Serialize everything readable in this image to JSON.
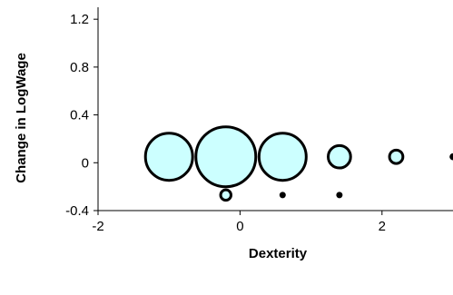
{
  "chart_data": {
    "type": "scatter",
    "variant": "bubble",
    "title": "",
    "xlabel": "Dexterity",
    "ylabel": "Change in LogWage",
    "xlim": [
      -2,
      3
    ],
    "ylim": [
      -0.4,
      1.3
    ],
    "x_ticks": [
      -2,
      0,
      2
    ],
    "x_tick_labels": [
      "-2",
      "0",
      "2"
    ],
    "y_ticks": [
      -0.4,
      0,
      0.4,
      0.8,
      1.2
    ],
    "y_tick_labels": [
      "-0.4",
      "0",
      "0.4",
      "0.8",
      "1.2"
    ],
    "grid": false,
    "legend": "none",
    "colors": {
      "bubble_fill": "#ccffff",
      "bubble_stroke": "#000000",
      "small_marker": "#000000"
    },
    "series": [
      {
        "points": [
          {
            "x": -1.0,
            "y": 0.05,
            "size": 0.62
          },
          {
            "x": -0.2,
            "y": 0.05,
            "size": 1.0
          },
          {
            "x": 0.6,
            "y": 0.05,
            "size": 0.62
          },
          {
            "x": 1.4,
            "y": 0.05,
            "size": 0.14
          },
          {
            "x": 2.2,
            "y": 0.05,
            "size": 0.05
          },
          {
            "x": 3.0,
            "y": 0.05,
            "size": 0.01
          }
        ]
      },
      {
        "points": [
          {
            "x": -0.2,
            "y": -0.27,
            "size": 0.03
          },
          {
            "x": 0.6,
            "y": -0.27,
            "size": 0.005
          },
          {
            "x": 1.4,
            "y": -0.27,
            "size": 0.005
          }
        ]
      }
    ]
  }
}
